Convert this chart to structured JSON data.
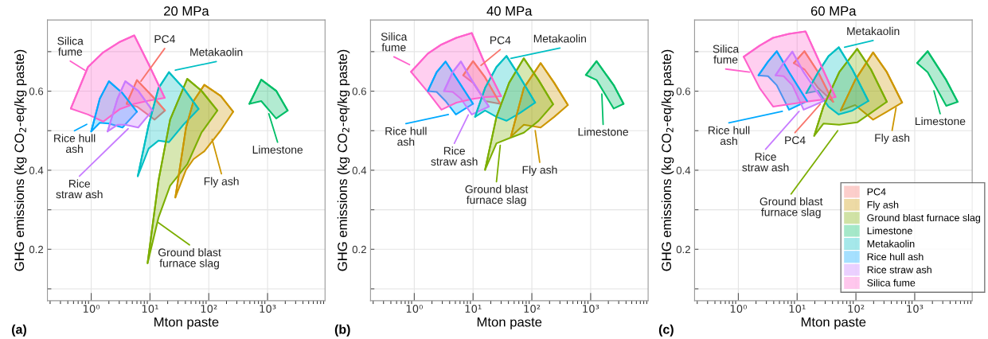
{
  "chart_data": [
    {
      "type": "line",
      "title": "20 MPa",
      "xlabel": "Mton paste",
      "ylabel": "GHG emissions (kg CO$_{2}$-eq/kg paste)",
      "log": "x",
      "grid": true,
      "xlim": [
        0.18,
        9500
      ],
      "xticks": [
        {
          "value": 1,
          "label": "10⁰"
        },
        {
          "value": 10,
          "label": "10¹"
        },
        {
          "value": 100,
          "label": "10²"
        },
        {
          "value": 1000,
          "label": "10³"
        }
      ],
      "ylim": [
        0.07,
        0.78
      ],
      "yticks": [
        {
          "value": 0.1,
          "label": null
        },
        0.2,
        {
          "value": 0.3,
          "label": null
        },
        0.4,
        {
          "value": 0.5,
          "label": null
        },
        0.6,
        {
          "value": 0.7,
          "label": null
        }
      ],
      "series": [
        {
          "color": "#f8766d",
          "x": [
            4.0,
            6.0,
            12,
            18
          ],
          "values": [
            0.568,
            0.628,
            0.581,
            0.551
          ],
          "upper": [
            0.568,
            0.628,
            0.581,
            0.551
          ],
          "lower": [
            0.568,
            0.561,
            0.528,
            0.551
          ]
        },
        {
          "color": "#cd9600",
          "x": [
            27,
            41,
            55,
            84,
            160,
            260
          ],
          "values": [
            0.331,
            0.508,
            0.575,
            0.616,
            0.588,
            0.548
          ],
          "upper": [
            0.331,
            0.508,
            0.575,
            0.616,
            0.588,
            0.548
          ],
          "lower": [
            0.331,
            0.401,
            0.428,
            0.448,
            0.501,
            0.548
          ]
        },
        {
          "color": "#7cae00",
          "x": [
            9.1,
            14,
            22,
            43,
            75,
            140
          ],
          "values": [
            0.165,
            0.375,
            0.528,
            0.631,
            0.601,
            0.551
          ],
          "upper": [
            0.165,
            0.375,
            0.528,
            0.631,
            0.601,
            0.551
          ],
          "lower": [
            0.165,
            0.281,
            0.361,
            0.415,
            0.495,
            0.551
          ]
        },
        {
          "color": "#00be67",
          "x": [
            490,
            780,
            1400,
            2200
          ],
          "values": [
            0.568,
            0.629,
            0.601,
            0.551
          ],
          "upper": [
            0.568,
            0.629,
            0.601,
            0.551
          ],
          "lower": [
            0.568,
            0.575,
            0.531,
            0.551
          ]
        },
        {
          "color": "#00bfc4",
          "x": [
            6.2,
            9.5,
            14,
            21,
            37,
            67
          ],
          "values": [
            0.385,
            0.515,
            0.608,
            0.648,
            0.608,
            0.555
          ],
          "upper": [
            0.385,
            0.515,
            0.608,
            0.648,
            0.608,
            0.555
          ],
          "lower": [
            0.385,
            0.455,
            0.475,
            0.471,
            0.515,
            0.555
          ]
        },
        {
          "color": "#00a9ff",
          "x": [
            1.0,
            1.4,
            2.0,
            3.4,
            6.0
          ],
          "values": [
            0.498,
            0.581,
            0.625,
            0.595,
            0.548
          ],
          "upper": [
            0.498,
            0.581,
            0.625,
            0.595,
            0.548
          ],
          "lower": [
            0.498,
            0.52,
            0.518,
            0.508,
            0.548
          ]
        },
        {
          "color": "#c77cff",
          "x": [
            1.9,
            2.8,
            3.8,
            6.3,
            11
          ],
          "values": [
            0.498,
            0.581,
            0.625,
            0.601,
            0.551
          ],
          "upper": [
            0.498,
            0.581,
            0.625,
            0.601,
            0.551
          ],
          "lower": [
            0.498,
            0.515,
            0.515,
            0.508,
            0.551
          ]
        },
        {
          "color": "#ff61cc",
          "x": [
            0.45,
            0.88,
            1.6,
            3.1,
            5.4,
            9.5,
            17.8
          ],
          "values": [
            0.556,
            0.661,
            0.698,
            0.725,
            0.741,
            0.668,
            0.583
          ],
          "upper": [
            0.556,
            0.661,
            0.698,
            0.725,
            0.741,
            0.668,
            0.583
          ],
          "lower": [
            0.556,
            0.541,
            0.523,
            0.555,
            0.568,
            0.576,
            0.583
          ]
        },
        {
          "color": "#f8766d",
          "x": [
            7.0,
            17.8
          ],
          "values": [
            0.625,
            0.708
          ]
        },
        {
          "color": "#cd9600",
          "x": [
            114,
            164
          ],
          "values": [
            0.478,
            0.391
          ]
        },
        {
          "color": "#7cae00",
          "x": [
            13.7,
            47
          ],
          "values": [
            0.268,
            0.211
          ]
        },
        {
          "color": "#00be67",
          "x": [
            1050,
            1480
          ],
          "values": [
            0.543,
            0.471
          ]
        },
        {
          "color": "#00bfc4",
          "x": [
            27,
            134
          ],
          "values": [
            0.653,
            0.675
          ]
        },
        {
          "color": "#00a9ff",
          "x": [
            0.52,
            0.84
          ],
          "values": [
            0.5,
            0.516
          ]
        },
        {
          "color": "#c77cff",
          "x": [
            0.63,
            4.25
          ],
          "values": [
            0.385,
            0.505
          ]
        },
        {
          "color": "#ff61cc",
          "x": [
            0.44,
            0.78
          ],
          "values": [
            0.676,
            0.653
          ]
        }
      ],
      "annotations": [
        "(a)",
        {
          "text": "Silica\nfume",
          "x": 0.44,
          "y": 0.676
        },
        {
          "text": "PC4",
          "x": 17.8,
          "y": 0.708
        },
        {
          "text": "Metakaolin",
          "x": 134,
          "y": 0.675
        },
        {
          "text": "Rice hull\nash",
          "x": 0.52,
          "y": 0.5
        },
        {
          "text": "Rice\nstraw ash",
          "x": 0.63,
          "y": 0.385
        },
        {
          "text": "Limestone",
          "x": 1480,
          "y": 0.471
        },
        {
          "text": "Fly ash",
          "x": 164,
          "y": 0.391
        },
        {
          "text": "Ground blast\nfurnace slag",
          "x": 47,
          "y": 0.211
        }
      ]
    },
    {
      "type": "line",
      "title": "40 MPa",
      "xlabel": "Mton paste",
      "ylabel": "GHG emissions (kg CO$_{2}$-eq/kg paste)",
      "log": "x",
      "grid": true,
      "xlim": [
        0.18,
        9500
      ],
      "xticks": [
        {
          "value": 1,
          "label": "10⁰"
        },
        {
          "value": 10,
          "label": "10¹"
        },
        {
          "value": 100,
          "label": "10²"
        },
        {
          "value": 1000,
          "label": "10³"
        }
      ],
      "ylim": [
        0.07,
        0.78
      ],
      "yticks": [
        {
          "value": 0.1,
          "label": null
        },
        0.2,
        {
          "value": 0.3,
          "label": null
        },
        0.4,
        {
          "value": 0.5,
          "label": null
        },
        0.6,
        {
          "value": 0.7,
          "label": null
        }
      ],
      "series": [
        {
          "color": "#f8766d",
          "x": [
            6.8,
            10,
            16,
            29
          ],
          "values": [
            0.64,
            0.676,
            0.635,
            0.568
          ],
          "upper": [
            0.64,
            0.676,
            0.635,
            0.568
          ],
          "lower": [
            0.64,
            0.621,
            0.575,
            0.568
          ]
        },
        {
          "color": "#cd9600",
          "x": [
            44,
            73,
            141,
            240,
            410
          ],
          "values": [
            0.485,
            0.608,
            0.671,
            0.621,
            0.565
          ],
          "upper": [
            0.485,
            0.608,
            0.671,
            0.621,
            0.565
          ],
          "lower": [
            0.485,
            0.515,
            0.508,
            0.535,
            0.565
          ]
        },
        {
          "color": "#7cae00",
          "x": [
            16,
            25,
            41,
            73,
            130,
            230
          ],
          "values": [
            0.401,
            0.535,
            0.621,
            0.683,
            0.628,
            0.567
          ],
          "upper": [
            0.401,
            0.535,
            0.621,
            0.683,
            0.628,
            0.567
          ],
          "lower": [
            0.401,
            0.468,
            0.481,
            0.495,
            0.525,
            0.567
          ]
        },
        {
          "color": "#00be67",
          "x": [
            830,
            1260,
            2470,
            3630
          ],
          "values": [
            0.641,
            0.676,
            0.615,
            0.568
          ],
          "upper": [
            0.641,
            0.676,
            0.615,
            0.568
          ],
          "lower": [
            0.641,
            0.628,
            0.556,
            0.568
          ]
        },
        {
          "color": "#00bfc4",
          "x": [
            10.8,
            16,
            25,
            37,
            63,
            114
          ],
          "values": [
            0.535,
            0.608,
            0.661,
            0.689,
            0.635,
            0.571
          ],
          "upper": [
            0.535,
            0.608,
            0.661,
            0.689,
            0.635,
            0.571
          ],
          "lower": [
            0.535,
            0.551,
            0.535,
            0.525,
            0.545,
            0.571
          ]
        },
        {
          "color": "#00a9ff",
          "x": [
            1.7,
            2.4,
            3.4,
            5.1,
            10
          ],
          "values": [
            0.6,
            0.648,
            0.675,
            0.635,
            0.568
          ],
          "upper": [
            0.6,
            0.648,
            0.675,
            0.635,
            0.568
          ],
          "lower": [
            0.6,
            0.598,
            0.575,
            0.541,
            0.568
          ]
        },
        {
          "color": "#c77cff",
          "x": [
            3.2,
            4.5,
            6.2,
            9.5,
            18.5
          ],
          "values": [
            0.6,
            0.648,
            0.675,
            0.628,
            0.561
          ],
          "upper": [
            0.6,
            0.648,
            0.675,
            0.628,
            0.561
          ],
          "lower": [
            0.6,
            0.598,
            0.581,
            0.541,
            0.561
          ]
        },
        {
          "color": "#ff61cc",
          "x": [
            0.88,
            1.7,
            2.9,
            5.2,
            9.5,
            16,
            30
          ],
          "values": [
            0.649,
            0.695,
            0.718,
            0.735,
            0.747,
            0.668,
            0.587
          ],
          "upper": [
            0.649,
            0.695,
            0.718,
            0.735,
            0.747,
            0.668,
            0.587
          ],
          "lower": [
            0.649,
            0.598,
            0.553,
            0.571,
            0.58,
            0.585,
            0.587
          ]
        },
        {
          "color": "#f8766d",
          "x": [
            13.6,
            29
          ],
          "values": [
            0.665,
            0.705
          ]
        },
        {
          "color": "#cd9600",
          "x": [
            114,
            136
          ],
          "values": [
            0.5,
            0.42
          ]
        },
        {
          "color": "#7cae00",
          "x": [
            25,
            29
          ],
          "values": [
            0.371,
            0.463
          ]
        },
        {
          "color": "#00be67",
          "x": [
            1550,
            1630
          ],
          "values": [
            0.593,
            0.516
          ]
        },
        {
          "color": "#00bfc4",
          "x": [
            44,
            300
          ],
          "values": [
            0.683,
            0.709
          ]
        },
        {
          "color": "#00a9ff",
          "x": [
            0.72,
            3.8
          ],
          "values": [
            0.518,
            0.541
          ]
        },
        {
          "color": "#c77cff",
          "x": [
            4.8,
            8.3
          ],
          "values": [
            0.468,
            0.54
          ]
        },
        {
          "color": "#ff61cc",
          "x": [
            0.45,
            0.83
          ],
          "values": [
            0.687,
            0.667
          ]
        }
      ],
      "annotations": [
        "(b)",
        {
          "text": "Silica\nfume",
          "x": 0.45,
          "y": 0.687
        },
        {
          "text": "PC4",
          "x": 29,
          "y": 0.705
        },
        {
          "text": "Metakaolin",
          "x": 300,
          "y": 0.709
        },
        {
          "text": "Rice hull\nash",
          "x": 0.72,
          "y": 0.518
        },
        {
          "text": "Rice\nstraw ash",
          "x": 4.8,
          "y": 0.468
        },
        {
          "text": "Limestone",
          "x": 1630,
          "y": 0.516
        },
        {
          "text": "Fly ash",
          "x": 136,
          "y": 0.42
        },
        {
          "text": "Ground blast\nfurnace slag",
          "x": 25,
          "y": 0.371
        }
      ]
    },
    {
      "type": "line",
      "title": "60 MPa",
      "xlabel": "Mton paste",
      "ylabel": "GHG emissions (kg CO$_{2}$-eq/kg paste)",
      "log": "x",
      "grid": true,
      "legend": "bottom right",
      "xlim": [
        0.18,
        9500
      ],
      "xticks": [
        {
          "value": 1,
          "label": "10⁰"
        },
        {
          "value": 10,
          "label": "10¹"
        },
        {
          "value": 100,
          "label": "10²"
        },
        {
          "value": 1000,
          "label": "10³"
        }
      ],
      "ylim": [
        0.07,
        0.78
      ],
      "yticks": [
        {
          "value": 0.1,
          "label": null
        },
        0.2,
        {
          "value": 0.3,
          "label": null
        },
        0.4,
        {
          "value": 0.5,
          "label": null
        },
        0.6,
        {
          "value": 0.7,
          "label": null
        }
      ],
      "series": [
        {
          "name": "PC4",
          "color": "#f8766d",
          "x": [
            8.8,
            13.3,
            22.8,
            41
          ],
          "values": [
            0.671,
            0.701,
            0.648,
            0.573
          ],
          "upper": [
            0.671,
            0.701,
            0.648,
            0.573
          ],
          "lower": [
            0.671,
            0.655,
            0.608,
            0.573
          ]
        },
        {
          "name": "Fly ash",
          "color": "#cd9600",
          "x": [
            55,
            97,
            196,
            336,
            612
          ],
          "values": [
            0.551,
            0.628,
            0.698,
            0.648,
            0.571
          ],
          "upper": [
            0.551,
            0.628,
            0.698,
            0.648,
            0.571
          ],
          "lower": [
            0.551,
            0.565,
            0.528,
            0.548,
            0.571
          ]
        },
        {
          "name": "Ground blast furnace slag",
          "color": "#7cae00",
          "x": [
            19.5,
            28,
            52,
            105,
            180,
            336
          ],
          "values": [
            0.487,
            0.561,
            0.648,
            0.707,
            0.655,
            0.573
          ],
          "upper": [
            0.487,
            0.561,
            0.648,
            0.707,
            0.655,
            0.573
          ],
          "lower": [
            0.487,
            0.518,
            0.515,
            0.521,
            0.545,
            0.573
          ]
        },
        {
          "name": "Limestone",
          "color": "#00be67",
          "x": [
            1100,
            1660,
            3440,
            5370
          ],
          "values": [
            0.671,
            0.701,
            0.628,
            0.573
          ],
          "upper": [
            0.671,
            0.701,
            0.628,
            0.573
          ],
          "lower": [
            0.671,
            0.648,
            0.563,
            0.573
          ]
        },
        {
          "name": "Metakaolin",
          "color": "#00bfc4",
          "x": [
            14.3,
            22.8,
            34,
            51,
            87,
            163
          ],
          "values": [
            0.595,
            0.648,
            0.688,
            0.711,
            0.655,
            0.575
          ],
          "upper": [
            0.595,
            0.648,
            0.688,
            0.711,
            0.655,
            0.575
          ],
          "lower": [
            0.595,
            0.601,
            0.561,
            0.541,
            0.551,
            0.575
          ]
        },
        {
          "name": "Rice hull ash",
          "color": "#00a9ff",
          "x": [
            2.2,
            3.2,
            4.5,
            7.3,
            14.8
          ],
          "values": [
            0.64,
            0.675,
            0.701,
            0.648,
            0.575
          ],
          "upper": [
            0.64,
            0.675,
            0.701,
            0.648,
            0.575
          ],
          "lower": [
            0.64,
            0.638,
            0.615,
            0.553,
            0.575
          ]
        },
        {
          "name": "Rice straw ash",
          "color": "#c77cff",
          "x": [
            4.3,
            5.9,
            8.3,
            12.9,
            28
          ],
          "values": [
            0.64,
            0.671,
            0.7,
            0.648,
            0.575
          ],
          "upper": [
            0.64,
            0.671,
            0.7,
            0.648,
            0.575
          ],
          "lower": [
            0.64,
            0.638,
            0.615,
            0.553,
            0.575
          ]
        },
        {
          "name": "Silica fume",
          "color": "#ff61cc",
          "x": [
            1.23,
            2.3,
            3.9,
            7.3,
            13.9,
            25,
            45
          ],
          "values": [
            0.687,
            0.715,
            0.735,
            0.745,
            0.751,
            0.668,
            0.585
          ],
          "upper": [
            0.687,
            0.715,
            0.735,
            0.745,
            0.751,
            0.668,
            0.585
          ],
          "lower": [
            0.687,
            0.608,
            0.561,
            0.567,
            0.573,
            0.578,
            0.585
          ]
        },
        {
          "color": "#f8766d",
          "x": [
            9.2,
            24.7
          ],
          "values": [
            0.495,
            0.567
          ]
        },
        {
          "color": "#cd9600",
          "x": [
            413,
            482
          ],
          "values": [
            0.501,
            0.558
          ]
        },
        {
          "color": "#7cae00",
          "x": [
            7.9,
            49
          ],
          "values": [
            0.34,
            0.5
          ]
        },
        {
          "color": "#00be67",
          "x": [
            2120,
            2710
          ],
          "values": [
            0.601,
            0.543
          ]
        },
        {
          "color": "#00bfc4",
          "x": [
            64,
            196
          ],
          "values": [
            0.711,
            0.728
          ]
        },
        {
          "color": "#00a9ff",
          "x": [
            0.69,
            5.6
          ],
          "values": [
            0.52,
            0.549
          ]
        },
        {
          "color": "#c77cff",
          "x": [
            2.9,
            10.8
          ],
          "values": [
            0.453,
            0.549
          ]
        },
        {
          "color": "#ff61cc",
          "x": [
            0.61,
            1.55
          ],
          "values": [
            0.656,
            0.648
          ]
        }
      ],
      "annotations": [
        "(c)",
        {
          "text": "Silica\nfume",
          "x": 0.61,
          "y": 0.656
        },
        {
          "text": "Metakaolin",
          "x": 196,
          "y": 0.728
        },
        {
          "text": "Rice hull\nash",
          "x": 0.69,
          "y": 0.52
        },
        {
          "text": "Rice\nstraw ash",
          "x": 2.9,
          "y": 0.453
        },
        {
          "text": "PC4",
          "x": 9.2,
          "y": 0.495
        },
        {
          "text": "Ground blast\nfurnace slag",
          "x": 7.9,
          "y": 0.34
        },
        {
          "text": "Fly ash",
          "x": 413,
          "y": 0.501
        },
        {
          "text": "Limestone",
          "x": 2710,
          "y": 0.543
        }
      ]
    }
  ]
}
